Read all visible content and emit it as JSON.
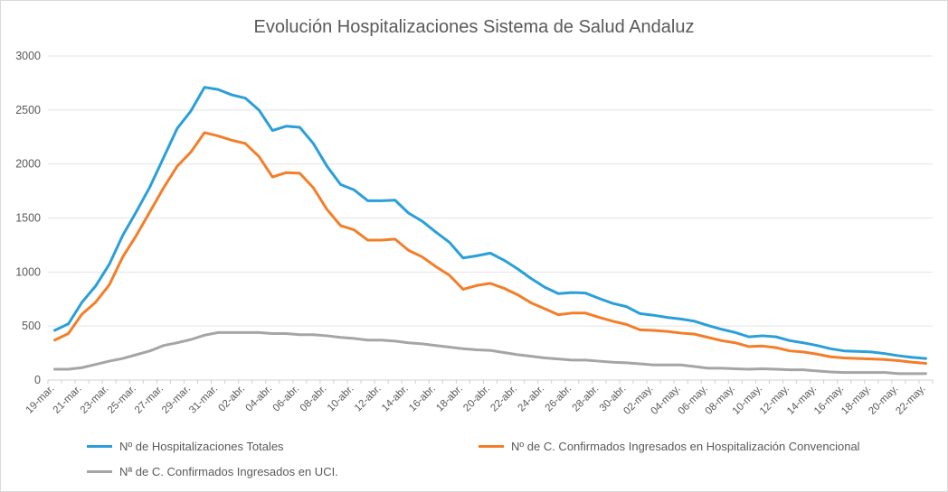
{
  "chart_data": {
    "type": "line",
    "title": "Evolución Hospitalizaciones Sistema de Salud Andaluz",
    "xlabel": "",
    "ylabel": "",
    "ylim": [
      0,
      3000
    ],
    "yticks": [
      "0",
      "500",
      "1000",
      "1500",
      "2000",
      "2500",
      "3000"
    ],
    "grid": "horizontal",
    "legend_position": "bottom",
    "x_tick_labels": [
      "19-mar.",
      "21-mar.",
      "23-mar.",
      "25-mar.",
      "27-mar.",
      "29-mar.",
      "31-mar.",
      "02-abr.",
      "04-abr.",
      "06-abr.",
      "08-abr.",
      "10-abr.",
      "12-abr.",
      "14-abr.",
      "16-abr.",
      "18-abr.",
      "20-abr.",
      "22-abr.",
      "24-abr.",
      "26-abr.",
      "28-abr.",
      "30-abr.",
      "02-may.",
      "04-may.",
      "06-may.",
      "08-may.",
      "10-may.",
      "12-may.",
      "14-may.",
      "16-may.",
      "18-may.",
      "20-may.",
      "22-may."
    ],
    "x": [
      "19-mar.",
      "20-mar.",
      "21-mar.",
      "22-mar.",
      "23-mar.",
      "24-mar.",
      "25-mar.",
      "26-mar.",
      "27-mar.",
      "28-mar.",
      "29-mar.",
      "30-mar.",
      "31-mar.",
      "01-abr.",
      "02-abr.",
      "03-abr.",
      "04-abr.",
      "05-abr.",
      "06-abr.",
      "07-abr.",
      "08-abr.",
      "09-abr.",
      "10-abr.",
      "11-abr.",
      "12-abr.",
      "13-abr.",
      "14-abr.",
      "15-abr.",
      "16-abr.",
      "17-abr.",
      "18-abr.",
      "19-abr.",
      "20-abr.",
      "21-abr.",
      "22-abr.",
      "23-abr.",
      "24-abr.",
      "25-abr.",
      "26-abr.",
      "27-abr.",
      "28-abr.",
      "29-abr.",
      "30-abr.",
      "01-may.",
      "02-may.",
      "03-may.",
      "04-may.",
      "05-may.",
      "06-may.",
      "07-may.",
      "08-may.",
      "09-may.",
      "10-may.",
      "11-may.",
      "12-may.",
      "13-may.",
      "14-may.",
      "15-may.",
      "16-may.",
      "17-may.",
      "18-may.",
      "19-may.",
      "20-may.",
      "21-may.",
      "22-may."
    ],
    "series": [
      {
        "name": "Nº de Hospitalizaciones Totales",
        "color": "#2a9fd8",
        "values": [
          460,
          520,
          720,
          870,
          1070,
          1340,
          1560,
          1790,
          2060,
          2330,
          2490,
          2710,
          2690,
          2640,
          2610,
          2500,
          2310,
          2350,
          2340,
          2190,
          1980,
          1810,
          1760,
          1660,
          1660,
          1665,
          1545,
          1470,
          1370,
          1275,
          1130,
          1150,
          1175,
          1110,
          1030,
          940,
          860,
          800,
          810,
          805,
          755,
          710,
          680,
          615,
          600,
          580,
          565,
          545,
          505,
          470,
          440,
          400,
          410,
          400,
          365,
          345,
          320,
          290,
          270,
          265,
          260,
          245,
          225,
          210,
          200
        ]
      },
      {
        "name": "Nº de C. Confirmados Ingresados en Hospitalización Convencional",
        "color": "#f47e28",
        "values": [
          370,
          430,
          610,
          720,
          880,
          1140,
          1340,
          1560,
          1780,
          1980,
          2110,
          2290,
          2260,
          2220,
          2190,
          2070,
          1880,
          1920,
          1915,
          1780,
          1580,
          1430,
          1390,
          1295,
          1295,
          1305,
          1200,
          1140,
          1050,
          970,
          840,
          875,
          895,
          850,
          790,
          715,
          660,
          605,
          620,
          620,
          580,
          545,
          515,
          465,
          460,
          450,
          435,
          425,
          395,
          365,
          345,
          310,
          315,
          300,
          270,
          260,
          240,
          215,
          205,
          200,
          195,
          190,
          180,
          165,
          155
        ]
      },
      {
        "name": "Nª de C. Confirmados Ingresados en UCI.",
        "color": "#a5a5a5",
        "values": [
          100,
          100,
          115,
          145,
          175,
          200,
          235,
          270,
          320,
          345,
          375,
          415,
          440,
          440,
          440,
          440,
          430,
          430,
          420,
          420,
          410,
          395,
          385,
          370,
          370,
          360,
          345,
          335,
          320,
          305,
          290,
          280,
          275,
          255,
          235,
          220,
          205,
          195,
          185,
          185,
          175,
          165,
          160,
          150,
          140,
          140,
          140,
          125,
          110,
          110,
          105,
          100,
          105,
          100,
          95,
          95,
          85,
          75,
          70,
          70,
          70,
          70,
          60,
          60,
          60
        ]
      }
    ]
  }
}
